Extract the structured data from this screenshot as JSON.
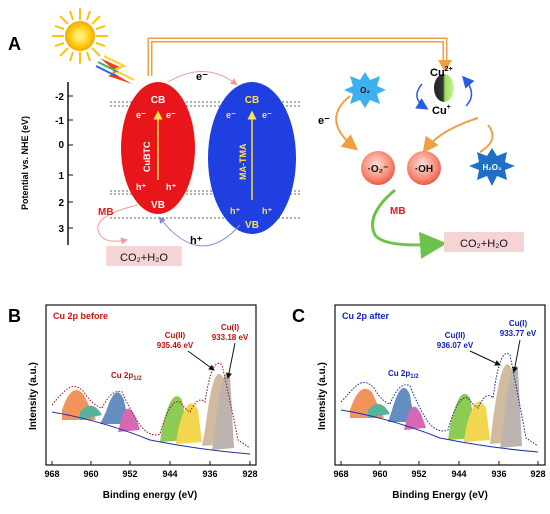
{
  "panels": {
    "a": {
      "letter": "A",
      "yaxis_label": "Potential vs. NHE (eV)",
      "ticks": [
        "-2",
        "-1",
        "0",
        "1",
        "2",
        "3"
      ],
      "cubtc": {
        "name": "CuBTC",
        "cb": "CB",
        "vb": "VB",
        "e1": "e⁻",
        "e2": "e⁻",
        "h1": "h⁺",
        "h2": "h⁺",
        "color": "#e8151b"
      },
      "matma": {
        "name": "MA-TMA",
        "cb": "CB",
        "vb": "VB",
        "e1": "e⁻",
        "e2": "e⁻",
        "h1": "h⁺",
        "h2": "h⁺",
        "color": "#1f3fe0"
      },
      "e_transfer": "e⁻",
      "h_transfer": "h⁺",
      "mb_left": "MB",
      "products_left": "CO₂+H₂O",
      "o2": "O₂",
      "cu2_base": "Cu",
      "cu2_sup": "2+",
      "cu1_base": "Cu",
      "cu1_sup": "+",
      "e_right": "e⁻",
      "superoxide": "·O₂⁻",
      "hydroxyl": "·OH",
      "h2o2": "H₂O₂",
      "mb_right": "MB",
      "products_right": "CO₂+H₂O"
    },
    "b": {
      "letter": "B",
      "title": "Cu 2p before",
      "xlabel": "Binding energy (eV)",
      "ylabel": "Intensity (a.u.)",
      "xticks": [
        "968",
        "960",
        "952",
        "944",
        "936",
        "928"
      ],
      "label_2p": "Cu 2p",
      "label_2p_sub": "1/2",
      "cu2_name": "Cu(II)",
      "cu2_value": "935.46 eV",
      "cu1_name": "Cu(I)",
      "cu1_value": "933.18 eV"
    },
    "c": {
      "letter": "C",
      "title": "Cu 2p after",
      "xlabel": "Binding Energy (eV)",
      "ylabel": "Intensity (a.u.)",
      "xticks": [
        "968",
        "960",
        "952",
        "944",
        "936",
        "928"
      ],
      "label_2p": "Cu 2p",
      "label_2p_sub": "1/2",
      "cu2_name": "Cu(II)",
      "cu2_value": "936.07 eV",
      "cu1_name": "Cu(I)",
      "cu1_value": "933.77 eV"
    }
  },
  "colors": {
    "red": "#e8151b",
    "blue": "#1f3fe0",
    "orange": "#f0a040",
    "green": "#6cc24a",
    "pink_box": "#f6d3d4",
    "before_title": "#d01010",
    "after_title": "#1020c0"
  },
  "icons": [
    "sun-icon",
    "light-bolt-icon",
    "cu-sphere-icon"
  ]
}
